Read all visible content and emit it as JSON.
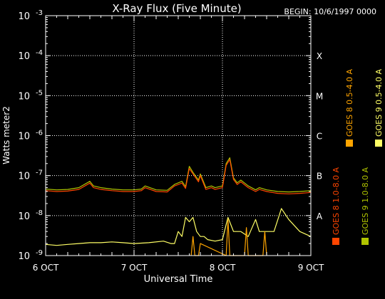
{
  "chart_data": {
    "type": "line",
    "title": "X-Ray Flux (Five Minute)",
    "begin_label": "BEGIN: 10/6/1997 0000",
    "xlabel": "Universal Time",
    "ylabel": "Watts meter2",
    "x_range": [
      "1997-10-06 00:00",
      "1997-10-09 00:00"
    ],
    "x_ticks": [
      {
        "label": "6 OCT",
        "value": "1997-10-06 00:00"
      },
      {
        "label": "7 OCT",
        "value": "1997-10-07 00:00"
      },
      {
        "label": "8 OCT",
        "value": "1997-10-08 00:00"
      },
      {
        "label": "9 OCT",
        "value": "1997-10-09 00:00"
      }
    ],
    "y_scale": "log",
    "ylim": [
      1e-09,
      0.001
    ],
    "y_ticks": [
      {
        "base": "10",
        "exp": "-9",
        "value": 1e-09
      },
      {
        "base": "10",
        "exp": "-8",
        "value": 1e-08
      },
      {
        "base": "10",
        "exp": "-7",
        "value": 1e-07
      },
      {
        "base": "10",
        "exp": "-6",
        "value": 1e-06
      },
      {
        "base": "10",
        "exp": "-5",
        "value": 1e-05
      },
      {
        "base": "10",
        "exp": "-4",
        "value": 0.0001
      },
      {
        "base": "10",
        "exp": "-3",
        "value": 0.001
      }
    ],
    "flare_classes": [
      {
        "label": "A",
        "value": 1e-08
      },
      {
        "label": "B",
        "value": 1e-07
      },
      {
        "label": "C",
        "value": 1e-06
      },
      {
        "label": "M",
        "value": 1e-05
      },
      {
        "label": "X",
        "value": 0.0001
      }
    ],
    "day_gridlines": [
      "1997-10-07 00:00",
      "1997-10-08 00:00"
    ],
    "series": [
      {
        "name": "GOES 8 1.0-8.0 A",
        "color": "#ff4500",
        "x": [
          "1997-10-06 00:00",
          "1997-10-06 03:00",
          "1997-10-06 06:00",
          "1997-10-06 09:00",
          "1997-10-06 12:00",
          "1997-10-06 13:00",
          "1997-10-06 15:00",
          "1997-10-06 18:00",
          "1997-10-06 21:00",
          "1997-10-07 00:00",
          "1997-10-07 02:00",
          "1997-10-07 03:00",
          "1997-10-07 06:00",
          "1997-10-07 09:00",
          "1997-10-07 11:00",
          "1997-10-07 13:00",
          "1997-10-07 14:00",
          "1997-10-07 15:00",
          "1997-10-07 16:00",
          "1997-10-07 17:30",
          "1997-10-07 18:00",
          "1997-10-07 19:30",
          "1997-10-07 21:00",
          "1997-10-07 22:00",
          "1997-10-08 00:00",
          "1997-10-08 01:00",
          "1997-10-08 02:00",
          "1997-10-08 03:00",
          "1997-10-08 04:00",
          "1997-10-08 05:00",
          "1997-10-08 07:00",
          "1997-10-08 09:00",
          "1997-10-08 10:00",
          "1997-10-08 12:00",
          "1997-10-08 15:00",
          "1997-10-08 18:00",
          "1997-10-08 21:00",
          "1997-10-09 00:00"
        ],
        "y": [
          4.2e-08,
          4e-08,
          4.1e-08,
          4.5e-08,
          6.5e-08,
          5e-08,
          4.5e-08,
          4.2e-08,
          4e-08,
          4e-08,
          4.2e-08,
          5e-08,
          4e-08,
          3.9e-08,
          5.5e-08,
          6.5e-08,
          4.8e-08,
          1.5e-07,
          1.1e-07,
          7e-08,
          1e-07,
          4.5e-08,
          5e-08,
          4.5e-08,
          5e-08,
          1.8e-07,
          2.5e-07,
          8e-08,
          6e-08,
          7e-08,
          5e-08,
          4e-08,
          4.5e-08,
          4e-08,
          3.6e-08,
          3.5e-08,
          3.6e-08,
          3.8e-08
        ]
      },
      {
        "name": "GOES 8 0.5-4.0 A",
        "color": "#ffa500",
        "x": [
          "1997-10-07 15:30",
          "1997-10-07 16:00",
          "1997-10-07 16:30",
          "1997-10-07 17:30",
          "1997-10-07 18:00",
          "1997-10-08 01:00",
          "1997-10-08 01:30",
          "1997-10-08 02:00",
          "1997-10-08 06:00",
          "1997-10-08 06:30",
          "1997-10-08 07:00",
          "1997-10-08 11:00",
          "1997-10-08 11:30",
          "1997-10-08 12:00"
        ],
        "y": [
          1e-09,
          3e-09,
          1e-09,
          1e-09,
          2e-09,
          1e-09,
          8e-09,
          1e-09,
          1e-09,
          5e-09,
          1e-09,
          1e-09,
          4e-09,
          1e-09
        ]
      },
      {
        "name": "GOES 9 1.0-8.0 A",
        "color": "#b0c400",
        "x": [
          "1997-10-06 00:00",
          "1997-10-06 03:00",
          "1997-10-06 06:00",
          "1997-10-06 09:00",
          "1997-10-06 12:00",
          "1997-10-06 13:00",
          "1997-10-06 15:00",
          "1997-10-06 18:00",
          "1997-10-06 21:00",
          "1997-10-07 00:00",
          "1997-10-07 02:00",
          "1997-10-07 03:00",
          "1997-10-07 06:00",
          "1997-10-07 09:00",
          "1997-10-07 11:00",
          "1997-10-07 13:00",
          "1997-10-07 14:00",
          "1997-10-07 15:00",
          "1997-10-07 16:00",
          "1997-10-07 17:30",
          "1997-10-07 18:00",
          "1997-10-07 19:30",
          "1997-10-07 21:00",
          "1997-10-07 22:00",
          "1997-10-08 00:00",
          "1997-10-08 01:00",
          "1997-10-08 02:00",
          "1997-10-08 03:00",
          "1997-10-08 04:00",
          "1997-10-08 05:00",
          "1997-10-08 07:00",
          "1997-10-08 09:00",
          "1997-10-08 10:00",
          "1997-10-08 12:00",
          "1997-10-08 15:00",
          "1997-10-08 18:00",
          "1997-10-08 21:00",
          "1997-10-09 00:00"
        ],
        "y": [
          4.6e-08,
          4.4e-08,
          4.5e-08,
          5e-08,
          7.2e-08,
          5.5e-08,
          5e-08,
          4.6e-08,
          4.4e-08,
          4.4e-08,
          4.6e-08,
          5.5e-08,
          4.4e-08,
          4.3e-08,
          6e-08,
          7.2e-08,
          5.3e-08,
          1.7e-07,
          1.2e-07,
          7.7e-08,
          1.1e-07,
          5e-08,
          5.5e-08,
          5e-08,
          5.5e-08,
          2e-07,
          2.8e-07,
          8.8e-08,
          6.6e-08,
          7.7e-08,
          5.5e-08,
          4.4e-08,
          5e-08,
          4.4e-08,
          4e-08,
          3.9e-08,
          4e-08,
          4.2e-08
        ]
      },
      {
        "name": "GOES 9 0.5-4.0 A",
        "color": "#ffff66",
        "x": [
          "1997-10-06 00:00",
          "1997-10-06 03:00",
          "1997-10-06 06:00",
          "1997-10-06 09:00",
          "1997-10-06 12:00",
          "1997-10-06 15:00",
          "1997-10-06 18:00",
          "1997-10-06 21:00",
          "1997-10-07 00:00",
          "1997-10-07 04:00",
          "1997-10-07 08:00",
          "1997-10-07 10:00",
          "1997-10-07 11:00",
          "1997-10-07 12:00",
          "1997-10-07 13:00",
          "1997-10-07 14:00",
          "1997-10-07 15:00",
          "1997-10-07 16:00",
          "1997-10-07 17:00",
          "1997-10-07 18:00",
          "1997-10-07 19:00",
          "1997-10-07 20:00",
          "1997-10-07 22:00",
          "1997-10-08 00:00",
          "1997-10-08 01:00",
          "1997-10-08 01:30",
          "1997-10-08 03:00",
          "1997-10-08 05:00",
          "1997-10-08 07:00",
          "1997-10-08 09:00",
          "1997-10-08 10:00",
          "1997-10-08 12:00",
          "1997-10-08 14:00",
          "1997-10-08 16:00",
          "1997-10-08 18:00",
          "1997-10-08 21:00",
          "1997-10-09 00:00"
        ],
        "y": [
          1.9e-09,
          1.8e-09,
          1.9e-09,
          2e-09,
          2.1e-09,
          2.1e-09,
          2.2e-09,
          2.1e-09,
          2e-09,
          2.1e-09,
          2.3e-09,
          2e-09,
          2e-09,
          4e-09,
          3e-09,
          9e-09,
          7e-09,
          9e-09,
          4e-09,
          3e-09,
          3e-09,
          2.5e-09,
          2.3e-09,
          2.5e-09,
          6e-09,
          9e-09,
          4e-09,
          4e-09,
          3e-09,
          8e-09,
          4e-09,
          4e-09,
          4e-09,
          1.5e-08,
          8e-09,
          4e-09,
          3e-09
        ]
      }
    ]
  }
}
